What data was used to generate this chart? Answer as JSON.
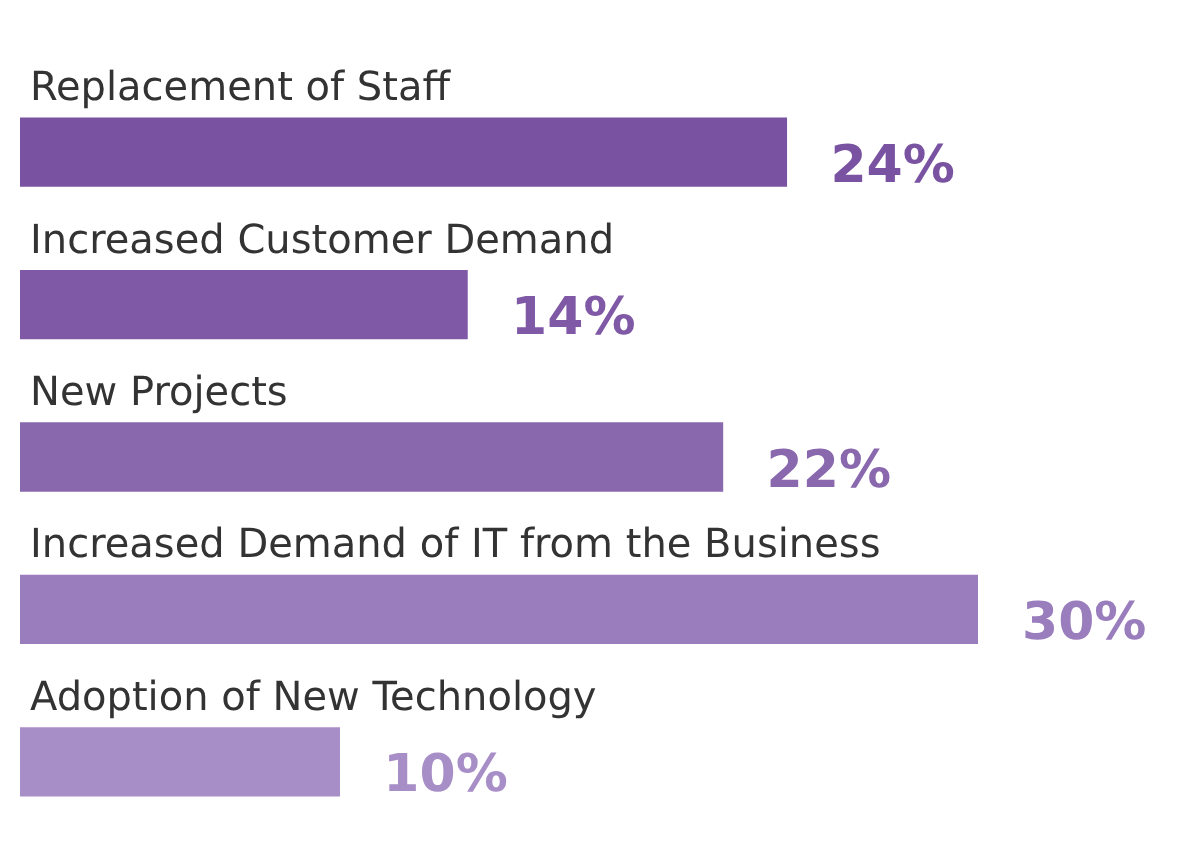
{
  "chart_data": {
    "type": "bar",
    "orientation": "horizontal",
    "categories": [
      "Replacement of Staff",
      "Increased Customer Demand",
      "New Projects",
      "Increased Demand of IT from the Business",
      "Adoption of New Technology"
    ],
    "values": [
      24,
      14,
      22,
      30,
      10
    ],
    "colors": [
      "#7a52a2",
      "#7f58a6",
      "#8a68ae",
      "#9a7dbc",
      "#a88ec7"
    ],
    "value_labels": [
      "24%",
      "14%",
      "22%",
      "30%",
      "10%"
    ],
    "legend": false
  }
}
